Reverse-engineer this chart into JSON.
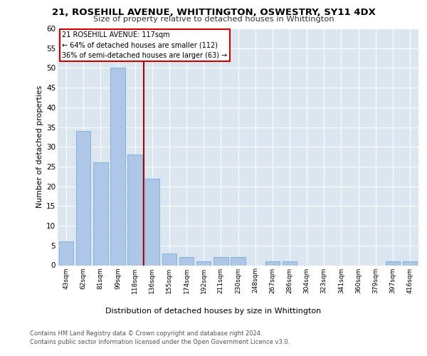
{
  "title1": "21, ROSEHILL AVENUE, WHITTINGTON, OSWESTRY, SY11 4DX",
  "title2": "Size of property relative to detached houses in Whittington",
  "xlabel": "Distribution of detached houses by size in Whittington",
  "ylabel": "Number of detached properties",
  "categories": [
    "43sqm",
    "62sqm",
    "81sqm",
    "99sqm",
    "118sqm",
    "136sqm",
    "155sqm",
    "174sqm",
    "192sqm",
    "211sqm",
    "230sqm",
    "248sqm",
    "267sqm",
    "286sqm",
    "304sqm",
    "323sqm",
    "341sqm",
    "360sqm",
    "379sqm",
    "397sqm",
    "416sqm"
  ],
  "values": [
    6,
    34,
    26,
    50,
    28,
    22,
    3,
    2,
    1,
    2,
    2,
    0,
    1,
    1,
    0,
    0,
    0,
    0,
    0,
    1,
    1
  ],
  "bar_color": "#aec6e8",
  "bar_edge_color": "#7aaed4",
  "vline_x": 4.5,
  "vline_color": "#aa0000",
  "annotation_line1": "21 ROSEHILL AVENUE: 117sqm",
  "annotation_line2": "← 64% of detached houses are smaller (112)",
  "annotation_line3": "36% of semi-detached houses are larger (63) →",
  "annotation_box_color": "#cc0000",
  "ylim": [
    0,
    60
  ],
  "yticks": [
    0,
    5,
    10,
    15,
    20,
    25,
    30,
    35,
    40,
    45,
    50,
    55,
    60
  ],
  "footnote1": "Contains HM Land Registry data © Crown copyright and database right 2024.",
  "footnote2": "Contains public sector information licensed under the Open Government Licence v3.0.",
  "plot_bg_color": "#dce6f1"
}
